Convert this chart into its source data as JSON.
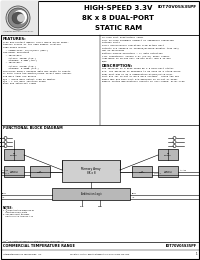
{
  "bg_color": "#ffffff",
  "header": {
    "title_line1": "HIGH-SPEED 3.3V",
    "title_line2": "8K x 8 DUAL-PORT",
    "title_line3": "STATIC RAM",
    "part_number": "IDT70V05S35PF",
    "company": "Integrated Device Technology, Inc."
  },
  "features_title": "FEATURES:",
  "features": [
    "True Bus-Protect memory cells which allow simul-",
    "taneous access of the same memory location",
    "High-speed access",
    "  — Commercial: 35/45/55ns (max.)",
    "Low-power operation",
    "  — IDT70V05S:",
    "    Active: 495mW (typ.)",
    "    Standby: 5.5mW (typ.)",
    "  — IDT70V05L:",
    "    Active: 275mW (typ.)",
    "    Standby: 0.55mW (typ.)",
    "IDT70V05S easily expands data bus width to 16bits",
    "or more using the Master/Slave select when cascad-",
    "ing more than one device",
    "M/S = drive BUSY output flag as Master",
    "M/S = L for BUSY function Slave",
    "Busy and Interrupt flags"
  ],
  "features2": [
    "On-chip port arbitration logic",
    "Full on-chip hardware support of semaphore signaling",
    "between ports",
    "Fully asynchronous operation from either port",
    "Outputs are capable of sinking/driving greater than 2mA/",
    "4mA on discharge",
    "Battery-backup operation — 2V data retention",
    "CTTL compatible, single 3.3V (±0.3V) power supply",
    "Available in 48-pin PGA, 68-pin PLCC, and a 44-pin",
    "TQFP"
  ],
  "description_title": "DESCRIPTION:",
  "description": [
    "The IDT70V05 is a high-speed 8K x 8 Dual-Port Static",
    "RAM. The IDT70V05 is designed to be used as a stand-alone",
    "Dual-Port RAM or as a combination MASTER/SLAVE Dual-",
    "Port RAM for 16-bit or more word systems.  Using the IDT",
    "BURST BUS and Dual-Port RAM approach in 16-bit or wider",
    "memory system applications results in full-speed, error-free"
  ],
  "block_diagram_title": "FUNCTIONAL BLOCK DIAGRAM",
  "footer_left": "COMMERCIAL TEMPERATURE RANGE",
  "footer_right": "IDT70V05S35PF",
  "footer_company": "Integrated Device Technology, Inc.",
  "footer_note": "IDT™ is a registered trademark of Integrated Device Technology, Inc.",
  "footer_web": "For details, visit our website at www.idt.com or call 1-800-345-7015.",
  "footer_page": "1",
  "white_bg": "#ffffff",
  "block_fill": "#b8b8b8",
  "block_fill2": "#d0d0d0"
}
